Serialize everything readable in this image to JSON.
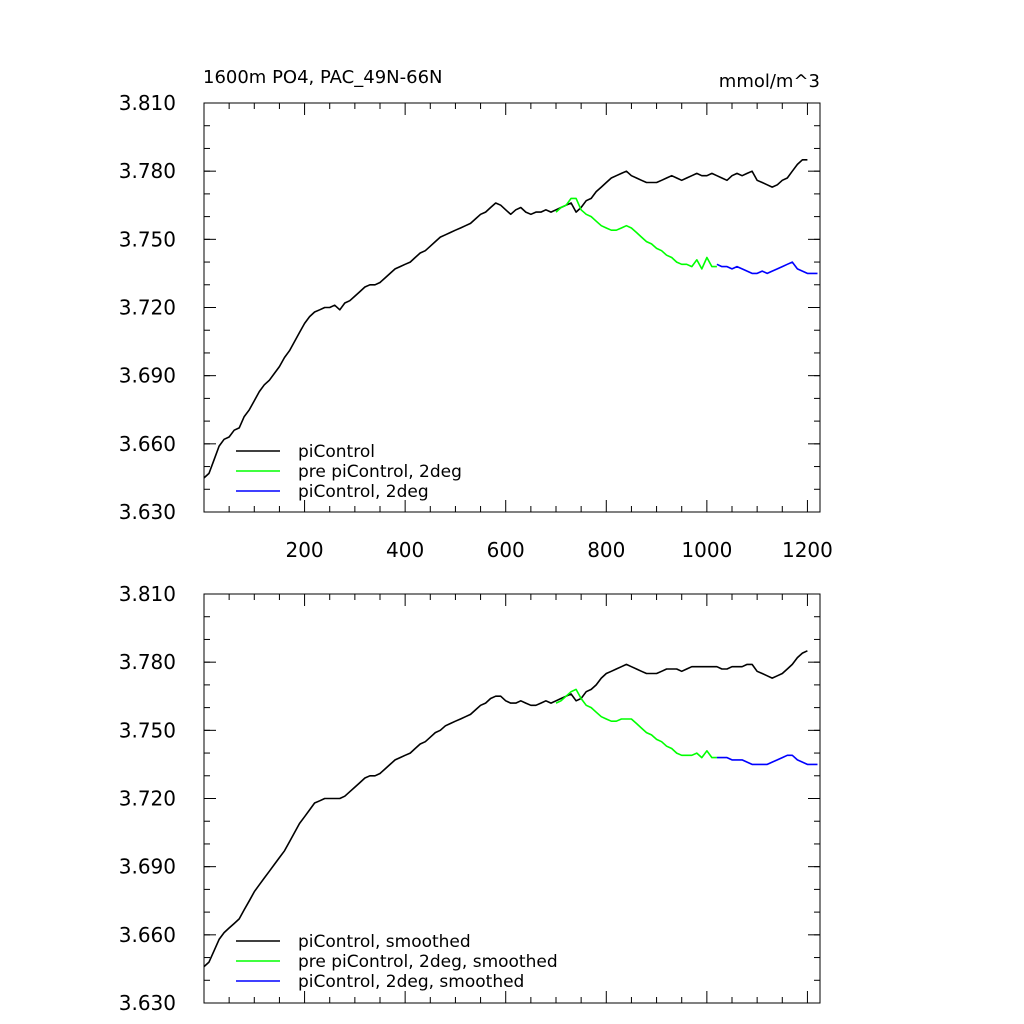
{
  "chart_data": [
    {
      "type": "line",
      "title": "1600m PO4, PAC_49N-66N",
      "units": "mmol/m^3",
      "xlim": [
        0,
        1225
      ],
      "ylim": [
        3.63,
        3.81
      ],
      "x_ticks": [
        200,
        400,
        600,
        800,
        1000,
        1200
      ],
      "x_tick_labels": [
        "200",
        "400",
        "600",
        "800",
        "1000",
        "1200"
      ],
      "y_ticks": [
        3.63,
        3.66,
        3.69,
        3.72,
        3.75,
        3.78,
        3.81
      ],
      "y_tick_labels": [
        "3.630",
        "3.660",
        "3.690",
        "3.720",
        "3.750",
        "3.780",
        "3.810"
      ],
      "grid": false,
      "legend_position": "bottom-left",
      "series": [
        {
          "name": "piControl",
          "color": "#000000",
          "x": [
            0,
            10,
            20,
            30,
            40,
            50,
            60,
            70,
            80,
            90,
            100,
            110,
            120,
            130,
            140,
            150,
            160,
            170,
            180,
            190,
            200,
            210,
            220,
            230,
            240,
            250,
            260,
            270,
            280,
            290,
            300,
            310,
            320,
            330,
            340,
            350,
            360,
            370,
            380,
            390,
            400,
            410,
            420,
            430,
            440,
            450,
            460,
            470,
            480,
            490,
            500,
            510,
            520,
            530,
            540,
            550,
            560,
            570,
            580,
            590,
            600,
            610,
            620,
            630,
            640,
            650,
            660,
            670,
            680,
            690,
            700,
            710,
            720,
            730,
            740,
            750,
            760,
            770,
            780,
            790,
            800,
            810,
            820,
            830,
            840,
            850,
            860,
            870,
            880,
            890,
            900,
            910,
            920,
            930,
            940,
            950,
            960,
            970,
            980,
            990,
            1000,
            1010,
            1020,
            1030,
            1040,
            1050,
            1060,
            1070,
            1080,
            1090,
            1100,
            1110,
            1120,
            1130,
            1140,
            1150,
            1160,
            1170,
            1180,
            1190,
            1200
          ],
          "values": [
            3.645,
            3.647,
            3.653,
            3.659,
            3.662,
            3.663,
            3.666,
            3.667,
            3.672,
            3.675,
            3.679,
            3.683,
            3.686,
            3.688,
            3.691,
            3.694,
            3.698,
            3.701,
            3.705,
            3.709,
            3.713,
            3.716,
            3.718,
            3.719,
            3.72,
            3.72,
            3.721,
            3.719,
            3.722,
            3.723,
            3.725,
            3.727,
            3.729,
            3.73,
            3.73,
            3.731,
            3.733,
            3.735,
            3.737,
            3.738,
            3.739,
            3.74,
            3.742,
            3.744,
            3.745,
            3.747,
            3.749,
            3.751,
            3.752,
            3.753,
            3.754,
            3.755,
            3.756,
            3.757,
            3.759,
            3.761,
            3.762,
            3.764,
            3.766,
            3.765,
            3.763,
            3.761,
            3.763,
            3.764,
            3.762,
            3.761,
            3.762,
            3.762,
            3.763,
            3.762,
            3.763,
            3.764,
            3.765,
            3.766,
            3.762,
            3.764,
            3.767,
            3.768,
            3.771,
            3.773,
            3.775,
            3.777,
            3.778,
            3.779,
            3.78,
            3.778,
            3.777,
            3.776,
            3.775,
            3.775,
            3.775,
            3.776,
            3.777,
            3.778,
            3.777,
            3.776,
            3.777,
            3.778,
            3.779,
            3.778,
            3.778,
            3.779,
            3.778,
            3.777,
            3.776,
            3.778,
            3.779,
            3.778,
            3.779,
            3.78,
            3.776,
            3.775,
            3.774,
            3.773,
            3.774,
            3.776,
            3.777,
            3.78,
            3.783,
            3.785,
            3.785
          ]
        },
        {
          "name": "pre piControl, 2deg",
          "color": "#00ff00",
          "x": [
            700,
            710,
            720,
            730,
            740,
            750,
            760,
            770,
            780,
            790,
            800,
            810,
            820,
            830,
            840,
            850,
            860,
            870,
            880,
            890,
            900,
            910,
            920,
            930,
            940,
            950,
            960,
            970,
            980,
            990,
            1000,
            1010,
            1020
          ],
          "values": [
            3.762,
            3.764,
            3.765,
            3.768,
            3.768,
            3.763,
            3.761,
            3.76,
            3.758,
            3.756,
            3.755,
            3.754,
            3.754,
            3.755,
            3.756,
            3.755,
            3.753,
            3.751,
            3.749,
            3.748,
            3.746,
            3.745,
            3.743,
            3.742,
            3.74,
            3.739,
            3.739,
            3.738,
            3.741,
            3.737,
            3.742,
            3.738,
            3.738
          ]
        },
        {
          "name": "piControl, 2deg",
          "color": "#0000ff",
          "x": [
            1020,
            1030,
            1040,
            1050,
            1060,
            1070,
            1080,
            1090,
            1100,
            1110,
            1120,
            1130,
            1140,
            1150,
            1160,
            1170,
            1180,
            1190,
            1200,
            1210,
            1220
          ],
          "values": [
            3.739,
            3.738,
            3.738,
            3.737,
            3.738,
            3.737,
            3.736,
            3.735,
            3.735,
            3.736,
            3.735,
            3.736,
            3.737,
            3.738,
            3.739,
            3.74,
            3.737,
            3.736,
            3.735,
            3.735,
            3.735
          ]
        }
      ]
    },
    {
      "type": "line",
      "xlim": [
        0,
        1225
      ],
      "ylim": [
        3.63,
        3.81
      ],
      "x_ticks": [
        200,
        400,
        600,
        800,
        1000,
        1200
      ],
      "y_ticks": [
        3.63,
        3.66,
        3.69,
        3.72,
        3.75,
        3.78,
        3.81
      ],
      "y_tick_labels": [
        "3.630",
        "3.660",
        "3.690",
        "3.720",
        "3.750",
        "3.780",
        "3.810"
      ],
      "grid": false,
      "legend_position": "bottom-left",
      "series": [
        {
          "name": "piControl, smoothed",
          "color": "#000000",
          "x": [
            0,
            10,
            20,
            30,
            40,
            50,
            60,
            70,
            80,
            90,
            100,
            110,
            120,
            130,
            140,
            150,
            160,
            170,
            180,
            190,
            200,
            210,
            220,
            230,
            240,
            250,
            260,
            270,
            280,
            290,
            300,
            310,
            320,
            330,
            340,
            350,
            360,
            370,
            380,
            390,
            400,
            410,
            420,
            430,
            440,
            450,
            460,
            470,
            480,
            490,
            500,
            510,
            520,
            530,
            540,
            550,
            560,
            570,
            580,
            590,
            600,
            610,
            620,
            630,
            640,
            650,
            660,
            670,
            680,
            690,
            700,
            710,
            720,
            730,
            740,
            750,
            760,
            770,
            780,
            790,
            800,
            810,
            820,
            830,
            840,
            850,
            860,
            870,
            880,
            890,
            900,
            910,
            920,
            930,
            940,
            950,
            960,
            970,
            980,
            990,
            1000,
            1010,
            1020,
            1030,
            1040,
            1050,
            1060,
            1070,
            1080,
            1090,
            1100,
            1110,
            1120,
            1130,
            1140,
            1150,
            1160,
            1170,
            1180,
            1190,
            1200
          ],
          "values": [
            3.646,
            3.648,
            3.653,
            3.658,
            3.661,
            3.663,
            3.665,
            3.667,
            3.671,
            3.675,
            3.679,
            3.682,
            3.685,
            3.688,
            3.691,
            3.694,
            3.697,
            3.701,
            3.705,
            3.709,
            3.712,
            3.715,
            3.718,
            3.719,
            3.72,
            3.72,
            3.72,
            3.72,
            3.721,
            3.723,
            3.725,
            3.727,
            3.729,
            3.73,
            3.73,
            3.731,
            3.733,
            3.735,
            3.737,
            3.738,
            3.739,
            3.74,
            3.742,
            3.744,
            3.745,
            3.747,
            3.749,
            3.75,
            3.752,
            3.753,
            3.754,
            3.755,
            3.756,
            3.757,
            3.759,
            3.761,
            3.762,
            3.764,
            3.765,
            3.765,
            3.763,
            3.762,
            3.762,
            3.763,
            3.762,
            3.761,
            3.761,
            3.762,
            3.763,
            3.762,
            3.763,
            3.764,
            3.765,
            3.766,
            3.763,
            3.764,
            3.767,
            3.768,
            3.77,
            3.773,
            3.775,
            3.776,
            3.777,
            3.778,
            3.779,
            3.778,
            3.777,
            3.776,
            3.775,
            3.775,
            3.775,
            3.776,
            3.777,
            3.777,
            3.777,
            3.776,
            3.777,
            3.778,
            3.778,
            3.778,
            3.778,
            3.778,
            3.778,
            3.777,
            3.777,
            3.778,
            3.778,
            3.778,
            3.779,
            3.779,
            3.776,
            3.775,
            3.774,
            3.773,
            3.774,
            3.775,
            3.777,
            3.779,
            3.782,
            3.784,
            3.785
          ]
        },
        {
          "name": "pre piControl, 2deg, smoothed",
          "color": "#00ff00",
          "x": [
            700,
            710,
            720,
            730,
            740,
            750,
            760,
            770,
            780,
            790,
            800,
            810,
            820,
            830,
            840,
            850,
            860,
            870,
            880,
            890,
            900,
            910,
            920,
            930,
            940,
            950,
            960,
            970,
            980,
            990,
            1000,
            1010,
            1020
          ],
          "values": [
            3.762,
            3.763,
            3.765,
            3.767,
            3.768,
            3.764,
            3.761,
            3.76,
            3.758,
            3.756,
            3.755,
            3.754,
            3.754,
            3.755,
            3.755,
            3.755,
            3.753,
            3.751,
            3.749,
            3.748,
            3.746,
            3.745,
            3.743,
            3.742,
            3.74,
            3.739,
            3.739,
            3.739,
            3.74,
            3.738,
            3.741,
            3.738,
            3.738
          ]
        },
        {
          "name": "piControl, 2deg, smoothed",
          "color": "#0000ff",
          "x": [
            1020,
            1030,
            1040,
            1050,
            1060,
            1070,
            1080,
            1090,
            1100,
            1110,
            1120,
            1130,
            1140,
            1150,
            1160,
            1170,
            1180,
            1190,
            1200,
            1210,
            1220
          ],
          "values": [
            3.738,
            3.738,
            3.738,
            3.737,
            3.737,
            3.737,
            3.736,
            3.735,
            3.735,
            3.735,
            3.735,
            3.736,
            3.737,
            3.738,
            3.739,
            3.739,
            3.737,
            3.736,
            3.735,
            3.735,
            3.735
          ]
        }
      ]
    }
  ]
}
